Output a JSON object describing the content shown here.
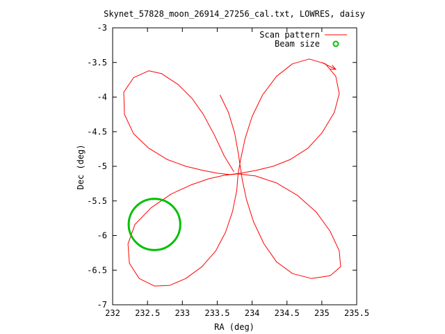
{
  "chart_data": {
    "type": "line",
    "title": "Skynet_57828_moon_26914_27256_cal.txt, LOWRES, daisy",
    "xlabel": "RA (deg)",
    "ylabel": "Dec (deg)",
    "xlim": [
      232,
      235.5
    ],
    "ylim": [
      -7,
      -3
    ],
    "x_ticks": [
      232,
      232.5,
      233,
      233.5,
      234,
      234.5,
      235,
      235.5
    ],
    "x_tick_labels": [
      "232",
      "232.5",
      "233",
      "233.5",
      "234",
      "234.5",
      "235",
      "235.5"
    ],
    "y_ticks": [
      -3,
      -3.5,
      -4,
      -4.5,
      -5,
      -5.5,
      -6,
      -6.5,
      -7
    ],
    "y_tick_labels": [
      "-3",
      "-3.5",
      "-4",
      "-4.5",
      "-5",
      "-5.5",
      "-6",
      "-6.5",
      "-7"
    ],
    "grid": false,
    "legend_position": "top-right",
    "series": [
      {
        "name": "Scan pattern",
        "color": "#ff0000",
        "marker": "none",
        "points": [
          [
            233.74,
            -5.08
          ],
          [
            233.6,
            -4.85
          ],
          [
            233.46,
            -4.55
          ],
          [
            233.3,
            -4.25
          ],
          [
            233.14,
            -4.02
          ],
          [
            232.94,
            -3.82
          ],
          [
            232.7,
            -3.66
          ],
          [
            232.52,
            -3.62
          ],
          [
            232.3,
            -3.72
          ],
          [
            232.16,
            -3.93
          ],
          [
            232.17,
            -4.25
          ],
          [
            232.3,
            -4.53
          ],
          [
            232.52,
            -4.74
          ],
          [
            232.78,
            -4.9
          ],
          [
            233.05,
            -5.0
          ],
          [
            233.3,
            -5.06
          ],
          [
            233.5,
            -5.1
          ],
          [
            233.68,
            -5.12
          ],
          [
            233.84,
            -5.1
          ],
          [
            234.05,
            -5.06
          ],
          [
            234.3,
            -5.0
          ],
          [
            234.55,
            -4.9
          ],
          [
            234.8,
            -4.74
          ],
          [
            235.0,
            -4.52
          ],
          [
            235.18,
            -4.22
          ],
          [
            235.25,
            -3.95
          ],
          [
            235.2,
            -3.7
          ],
          [
            235.05,
            -3.52
          ],
          [
            234.82,
            -3.45
          ],
          [
            234.58,
            -3.52
          ],
          [
            234.35,
            -3.7
          ],
          [
            234.15,
            -3.97
          ],
          [
            234.0,
            -4.28
          ],
          [
            233.9,
            -4.6
          ],
          [
            233.84,
            -4.88
          ],
          [
            233.8,
            -5.1
          ],
          [
            233.78,
            -5.35
          ],
          [
            233.72,
            -5.65
          ],
          [
            233.62,
            -5.95
          ],
          [
            233.48,
            -6.22
          ],
          [
            233.28,
            -6.45
          ],
          [
            233.05,
            -6.62
          ],
          [
            232.82,
            -6.72
          ],
          [
            232.6,
            -6.73
          ],
          [
            232.38,
            -6.62
          ],
          [
            232.24,
            -6.4
          ],
          [
            232.22,
            -6.12
          ],
          [
            232.32,
            -5.84
          ],
          [
            232.55,
            -5.6
          ],
          [
            232.84,
            -5.4
          ],
          [
            233.12,
            -5.27
          ],
          [
            233.38,
            -5.18
          ],
          [
            233.6,
            -5.13
          ],
          [
            233.8,
            -5.11
          ],
          [
            234.05,
            -5.14
          ],
          [
            234.35,
            -5.24
          ],
          [
            234.65,
            -5.42
          ],
          [
            234.92,
            -5.66
          ],
          [
            235.12,
            -5.94
          ],
          [
            235.25,
            -6.22
          ],
          [
            235.27,
            -6.45
          ],
          [
            235.12,
            -6.58
          ],
          [
            234.85,
            -6.62
          ],
          [
            234.58,
            -6.55
          ],
          [
            234.35,
            -6.38
          ],
          [
            234.17,
            -6.12
          ],
          [
            234.02,
            -5.8
          ],
          [
            233.92,
            -5.48
          ],
          [
            233.86,
            -5.2
          ],
          [
            233.83,
            -5.0
          ],
          [
            233.8,
            -4.8
          ],
          [
            233.75,
            -4.52
          ],
          [
            233.66,
            -4.22
          ],
          [
            233.54,
            -3.97
          ]
        ]
      },
      {
        "name": "Beam size",
        "color": "#00c000",
        "shape": "circle",
        "center": [
          232.6,
          -5.84
        ],
        "radius_deg": 0.37
      }
    ],
    "direction_arrow": {
      "from": [
        235.0,
        -3.5
      ],
      "to": [
        235.2,
        -3.6
      ]
    }
  }
}
